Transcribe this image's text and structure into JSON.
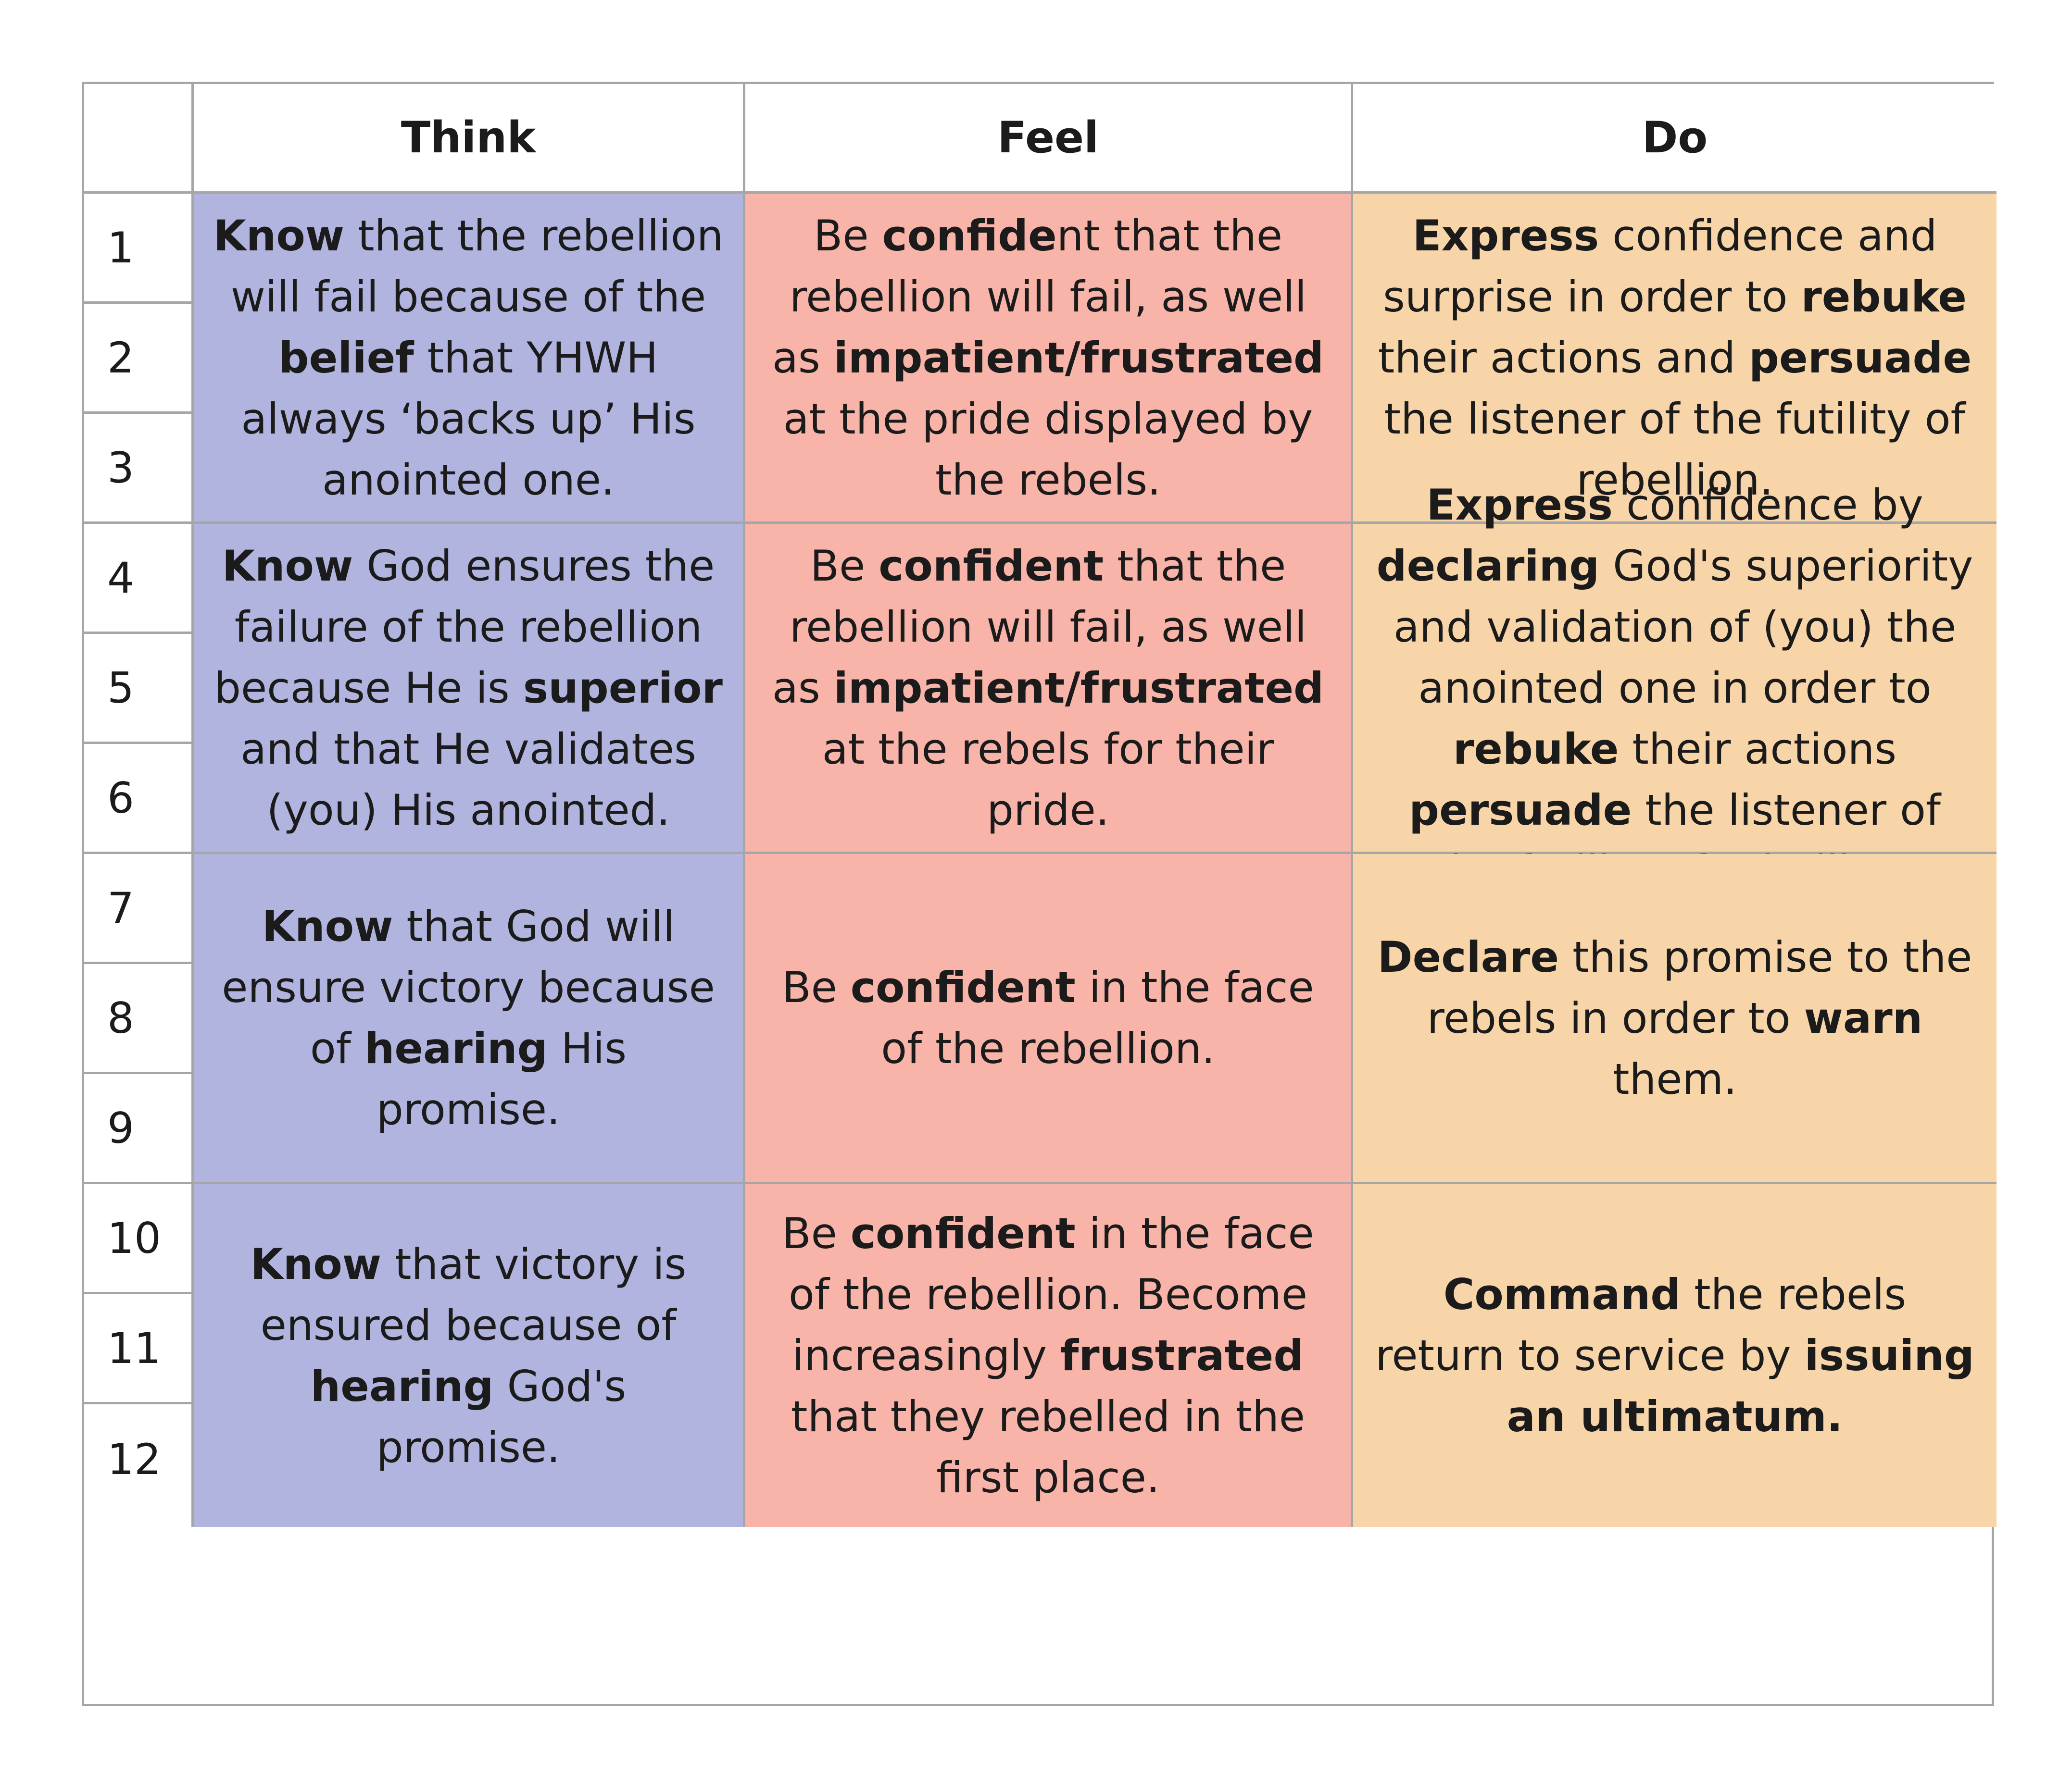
{
  "headers": {
    "think": "Think",
    "feel": "Feel",
    "do": "Do"
  },
  "rows": [
    {
      "numbers": [
        "1",
        "2",
        "3"
      ],
      "think": [
        {
          "b": "Know"
        },
        {
          "t": " that the rebellion will fail because of the "
        },
        {
          "b": "belief"
        },
        {
          "t": " that YHWH always ‘backs up’ His anointed one."
        }
      ],
      "feel": [
        {
          "t": "Be "
        },
        {
          "b": "confide"
        },
        {
          "t": "nt that the rebellion will fail, as well as "
        },
        {
          "b": "impatient/frustrated"
        },
        {
          "t": " at the pride displayed by the rebels."
        }
      ],
      "do": [
        {
          "b": "Express"
        },
        {
          "t": " confidence and surprise in order to "
        },
        {
          "b": "rebuke"
        },
        {
          "t": " their actions and "
        },
        {
          "b": "persuade"
        },
        {
          "t": " the listener of the futility of rebellion."
        }
      ]
    },
    {
      "numbers": [
        "4",
        "5",
        "6"
      ],
      "think": [
        {
          "b": "Know"
        },
        {
          "t": " God ensures the failure of the rebellion because He is "
        },
        {
          "b": "superior"
        },
        {
          "t": " and that He validates (you) His anointed."
        }
      ],
      "feel": [
        {
          "t": "Be "
        },
        {
          "b": "confident"
        },
        {
          "t": " that the rebellion will fail, as well as "
        },
        {
          "b": "impatient/frustrated"
        },
        {
          "t": " at the rebels for their pride."
        }
      ],
      "do": [
        {
          "b": "Express"
        },
        {
          "t": " confidence by "
        },
        {
          "b": "declaring"
        },
        {
          "t": " God's superiority and validation of (you) the anointed one in order to "
        },
        {
          "b": "rebuke"
        },
        {
          "t": " their actions "
        },
        {
          "b": "persuade"
        },
        {
          "t": " the listener of the futility of rebellion."
        }
      ]
    },
    {
      "numbers": [
        "7",
        "8",
        "9"
      ],
      "think": [
        {
          "b": "Know"
        },
        {
          "t": " that God will ensure victory because of "
        },
        {
          "b": "hearing"
        },
        {
          "t": " His promise."
        }
      ],
      "feel": [
        {
          "t": "Be "
        },
        {
          "b": "confident"
        },
        {
          "t": " in the face of the rebellion."
        }
      ],
      "do": [
        {
          "b": "Declare"
        },
        {
          "t": " this promise to the rebels in order to "
        },
        {
          "b": "warn"
        },
        {
          "t": " them."
        }
      ]
    },
    {
      "numbers": [
        "10",
        "11",
        "12"
      ],
      "think": [
        {
          "b": "Know"
        },
        {
          "t": " that victory is ensured because of "
        },
        {
          "b": "hearing"
        },
        {
          "t": " God's promise."
        }
      ],
      "feel": [
        {
          "t": "Be "
        },
        {
          "b": "confident"
        },
        {
          "t": " in the face of the rebellion. Become increasingly "
        },
        {
          "b": "frustrated"
        },
        {
          "t": " that they rebelled in the first place."
        }
      ],
      "do": [
        {
          "b": "Command"
        },
        {
          "t": " the rebels return to service by "
        },
        {
          "b": "issuing an ultimatum."
        }
      ]
    }
  ],
  "colors": {
    "think": "#b1b4de",
    "feel": "#f8b4a8",
    "do": "#f8d5a8",
    "border": "#a6a6a6"
  }
}
